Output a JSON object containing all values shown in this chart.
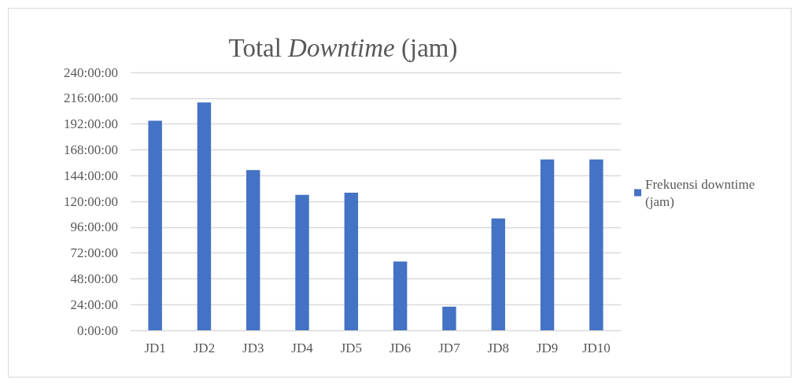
{
  "chart_data": {
    "type": "bar",
    "title": "Total Downtime (jam)",
    "categories": [
      "JD1",
      "JD2",
      "JD3",
      "JD4",
      "JD5",
      "JD6",
      "JD7",
      "JD8",
      "JD9",
      "JD10"
    ],
    "series": [
      {
        "name": "Frekuensi downtime (jam)",
        "color": "#4472c4",
        "values": [
          195,
          212,
          149,
          126,
          128,
          64,
          22,
          104,
          159,
          159
        ]
      }
    ],
    "ylim": [
      0,
      240
    ],
    "yticks": [
      {
        "value": 0,
        "label": "0:00:00"
      },
      {
        "value": 24,
        "label": "24:00:00"
      },
      {
        "value": 48,
        "label": "48:00:00"
      },
      {
        "value": 72,
        "label": "72:00:00"
      },
      {
        "value": 96,
        "label": "96:00:00"
      },
      {
        "value": 120,
        "label": "120:00:00"
      },
      {
        "value": 144,
        "label": "144:00:00"
      },
      {
        "value": 168,
        "label": "168:00:00"
      },
      {
        "value": 192,
        "label": "192:00:00"
      },
      {
        "value": 216,
        "label": "216:00:00"
      },
      {
        "value": 240,
        "label": "240:00:00"
      }
    ],
    "grid": "y",
    "legend": "right"
  }
}
